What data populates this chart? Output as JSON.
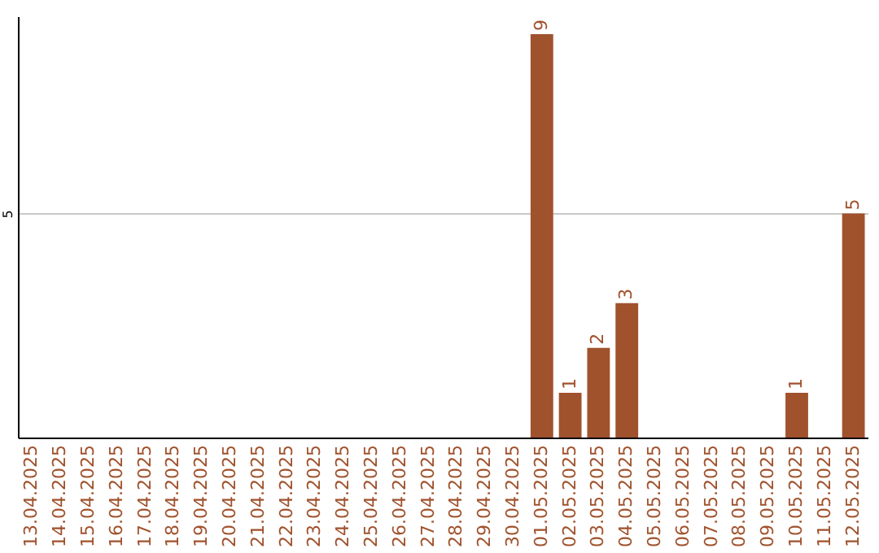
{
  "chart_data": {
    "type": "bar",
    "categories": [
      "13.04.2025",
      "14.04.2025",
      "15.04.2025",
      "16.04.2025",
      "17.04.2025",
      "18.04.2025",
      "19.04.2025",
      "20.04.2025",
      "21.04.2025",
      "22.04.2025",
      "23.04.2025",
      "24.04.2025",
      "25.04.2025",
      "26.04.2025",
      "27.04.2025",
      "28.04.2025",
      "29.04.2025",
      "30.04.2025",
      "01.05.2025",
      "02.05.2025",
      "03.05.2025",
      "04.05.2025",
      "05.05.2025",
      "06.05.2025",
      "07.05.2025",
      "08.05.2025",
      "09.05.2025",
      "10.05.2025",
      "11.05.2025",
      "12.05.2025"
    ],
    "values": [
      null,
      null,
      null,
      null,
      null,
      null,
      null,
      null,
      null,
      null,
      null,
      null,
      null,
      null,
      null,
      null,
      null,
      null,
      9,
      1,
      2,
      3,
      null,
      null,
      null,
      null,
      null,
      1,
      null,
      5
    ],
    "value_labels": [
      null,
      null,
      null,
      null,
      null,
      null,
      null,
      null,
      null,
      null,
      null,
      null,
      null,
      null,
      null,
      null,
      null,
      null,
      "9",
      "1",
      "2",
      "3",
      null,
      null,
      null,
      null,
      null,
      "1",
      null,
      "5"
    ],
    "color": "#a0522d",
    "ylim": [
      0,
      9.4
    ],
    "yticks": [
      5
    ],
    "grid": "y"
  }
}
